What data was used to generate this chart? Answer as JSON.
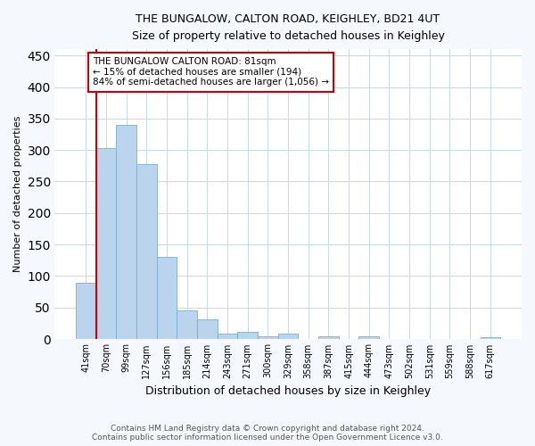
{
  "title1": "THE BUNGALOW, CALTON ROAD, KEIGHLEY, BD21 4UT",
  "title2": "Size of property relative to detached houses in Keighley",
  "xlabel": "Distribution of detached houses by size in Keighley",
  "ylabel": "Number of detached properties",
  "categories": [
    "41sqm",
    "70sqm",
    "99sqm",
    "127sqm",
    "156sqm",
    "185sqm",
    "214sqm",
    "243sqm",
    "271sqm",
    "300sqm",
    "329sqm",
    "358sqm",
    "387sqm",
    "415sqm",
    "444sqm",
    "473sqm",
    "502sqm",
    "531sqm",
    "559sqm",
    "588sqm",
    "617sqm"
  ],
  "values": [
    90,
    303,
    340,
    278,
    131,
    46,
    32,
    8,
    11,
    5,
    8,
    0,
    5,
    0,
    4,
    0,
    0,
    0,
    0,
    0,
    3
  ],
  "bar_color": "#bad4ed",
  "bar_edge_color": "#7aafd4",
  "vline_color": "#cc0000",
  "vline_pos": 1,
  "annotation_line1": "THE BUNGALOW CALTON ROAD: 81sqm",
  "annotation_line2": "← 15% of detached houses are smaller (194)",
  "annotation_line3": "84% of semi-detached houses are larger (1,056) →",
  "annotation_box_facecolor": "#ffffff",
  "annotation_box_edgecolor": "#cc0000",
  "ylim": [
    0,
    460
  ],
  "yticks": [
    0,
    50,
    100,
    150,
    200,
    250,
    300,
    350,
    400,
    450
  ],
  "footer1": "Contains HM Land Registry data © Crown copyright and database right 2024.",
  "footer2": "Contains public sector information licensed under the Open Government Licence v3.0.",
  "fig_facecolor": "#f5f8fd",
  "ax_facecolor": "#ffffff",
  "grid_color": "#c8d8ec"
}
